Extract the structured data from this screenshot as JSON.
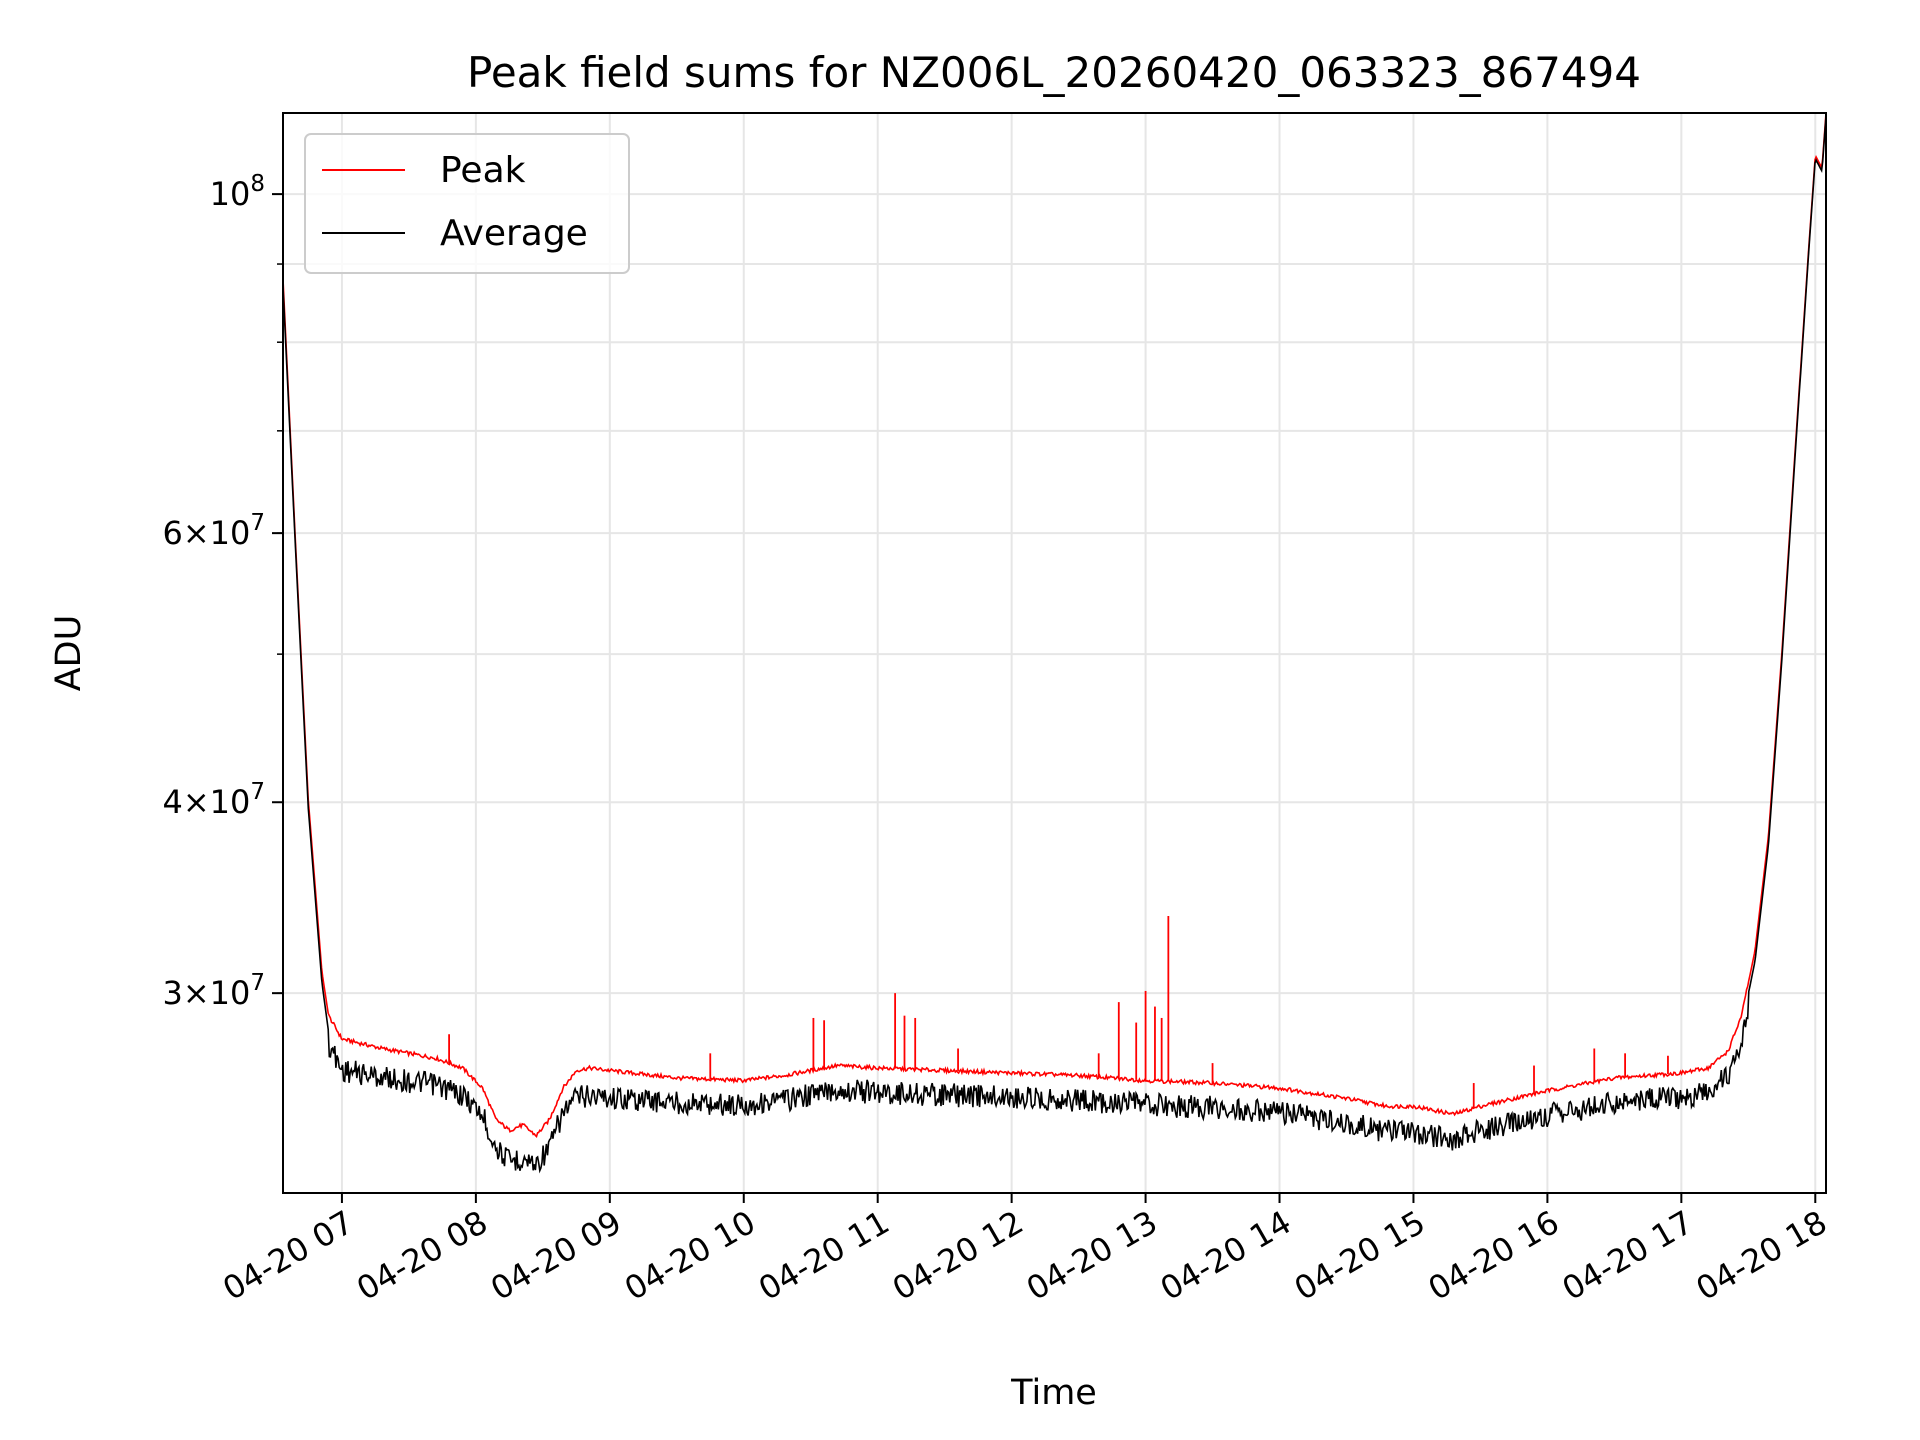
{
  "chart_data": {
    "type": "line",
    "title": "Peak field sums for NZ006L_20260420_063323_867494",
    "xlabel": "Time",
    "ylabel": "ADU",
    "yscale": "log",
    "xlim": [
      6.56,
      18.08
    ],
    "ylim": [
      22200000,
      113000000
    ],
    "grid": true,
    "legend_position": "upper-left",
    "x_ticks": [
      {
        "value": 7,
        "label": "04-20 07"
      },
      {
        "value": 8,
        "label": "04-20 08"
      },
      {
        "value": 9,
        "label": "04-20 09"
      },
      {
        "value": 10,
        "label": "04-20 10"
      },
      {
        "value": 11,
        "label": "04-20 11"
      },
      {
        "value": 12,
        "label": "04-20 12"
      },
      {
        "value": 13,
        "label": "04-20 13"
      },
      {
        "value": 14,
        "label": "04-20 14"
      },
      {
        "value": 15,
        "label": "04-20 15"
      },
      {
        "value": 16,
        "label": "04-20 16"
      },
      {
        "value": 17,
        "label": "04-20 17"
      },
      {
        "value": 18,
        "label": "04-20 18"
      }
    ],
    "y_ticks": [
      {
        "value": 30000000,
        "base": "3×10",
        "exp": "7"
      },
      {
        "value": 40000000,
        "base": "4×10",
        "exp": "7"
      },
      {
        "value": 60000000,
        "base": "6×10",
        "exp": "7"
      },
      {
        "value": 100000000,
        "base": "10",
        "exp": "8"
      }
    ],
    "y_minor_grid": [
      20000000,
      30000000,
      40000000,
      50000000,
      60000000,
      70000000,
      80000000,
      90000000
    ],
    "series": [
      {
        "name": "Peak",
        "color": "#ff0000",
        "x": [
          6.56,
          6.65,
          6.75,
          6.85,
          6.9,
          7.0,
          7.3,
          7.7,
          7.9,
          8.05,
          8.15,
          8.25,
          8.35,
          8.45,
          8.55,
          8.65,
          8.75,
          8.85,
          9.0,
          9.5,
          10.0,
          10.3,
          10.7,
          11.0,
          11.5,
          12.0,
          12.5,
          13.0,
          13.5,
          14.0,
          14.5,
          14.8,
          15.0,
          15.2,
          15.3,
          15.5,
          16.0,
          16.5,
          17.0,
          17.2,
          17.35,
          17.45,
          17.55,
          17.65,
          17.75,
          17.85,
          17.95,
          18.0,
          18.05,
          18.08
        ],
        "values": [
          88000000,
          60000000,
          40000000,
          31000000,
          29000000,
          28000000,
          27600000,
          27200000,
          26800000,
          26000000,
          24800000,
          24400000,
          24600000,
          24200000,
          24800000,
          26000000,
          26700000,
          26800000,
          26700000,
          26400000,
          26300000,
          26500000,
          26900000,
          26800000,
          26700000,
          26600000,
          26500000,
          26300000,
          26200000,
          26000000,
          25600000,
          25300000,
          25300000,
          25100000,
          25000000,
          25300000,
          25900000,
          26400000,
          26600000,
          26800000,
          27500000,
          29000000,
          32000000,
          38000000,
          50000000,
          68000000,
          92000000,
          106000000,
          104000000,
          113000000
        ]
      },
      {
        "name": "Average",
        "color": "#000000",
        "x": [
          6.56,
          6.65,
          6.75,
          6.85,
          6.9,
          7.0,
          7.3,
          7.7,
          7.9,
          8.05,
          8.15,
          8.25,
          8.35,
          8.45,
          8.55,
          8.65,
          8.75,
          8.85,
          9.0,
          9.5,
          10.0,
          10.3,
          10.7,
          11.0,
          11.5,
          12.0,
          12.5,
          13.0,
          13.5,
          14.0,
          14.5,
          14.8,
          15.0,
          15.2,
          15.3,
          15.5,
          16.0,
          16.5,
          17.0,
          17.2,
          17.35,
          17.45,
          17.55,
          17.65,
          17.75,
          17.85,
          17.95,
          18.0,
          18.05,
          18.08
        ],
        "values": [
          87000000,
          59500000,
          39500000,
          30500000,
          28300000,
          27200000,
          26900000,
          26600000,
          26200000,
          25400000,
          24200000,
          23700000,
          23800000,
          23600000,
          24200000,
          25500000,
          26100000,
          26200000,
          26100000,
          25900000,
          25800000,
          26000000,
          26400000,
          26300000,
          26200000,
          26100000,
          26000000,
          25800000,
          25700000,
          25500000,
          25100000,
          24800000,
          24700000,
          24600000,
          24500000,
          24800000,
          25400000,
          25900000,
          26100000,
          26300000,
          27000000,
          28500000,
          31500000,
          37500000,
          49500000,
          67500000,
          91500000,
          105500000,
          103500000,
          112500000
        ]
      }
    ],
    "peak_spikes": [
      {
        "x": 7.8,
        "value": 28200000
      },
      {
        "x": 9.75,
        "value": 27400000
      },
      {
        "x": 10.52,
        "value": 28900000
      },
      {
        "x": 10.6,
        "value": 28800000
      },
      {
        "x": 11.13,
        "value": 30000000
      },
      {
        "x": 11.2,
        "value": 29000000
      },
      {
        "x": 11.28,
        "value": 28900000
      },
      {
        "x": 11.6,
        "value": 27600000
      },
      {
        "x": 12.65,
        "value": 27400000
      },
      {
        "x": 12.8,
        "value": 29600000
      },
      {
        "x": 12.93,
        "value": 28700000
      },
      {
        "x": 13.0,
        "value": 30100000
      },
      {
        "x": 13.07,
        "value": 29400000
      },
      {
        "x": 13.12,
        "value": 28900000
      },
      {
        "x": 13.17,
        "value": 33700000
      },
      {
        "x": 13.5,
        "value": 27000000
      },
      {
        "x": 15.45,
        "value": 26200000
      },
      {
        "x": 15.9,
        "value": 26900000
      },
      {
        "x": 16.35,
        "value": 27600000
      },
      {
        "x": 16.58,
        "value": 27400000
      },
      {
        "x": 16.9,
        "value": 27300000
      }
    ]
  },
  "legend": {
    "peak_label": "Peak",
    "average_label": "Average"
  }
}
